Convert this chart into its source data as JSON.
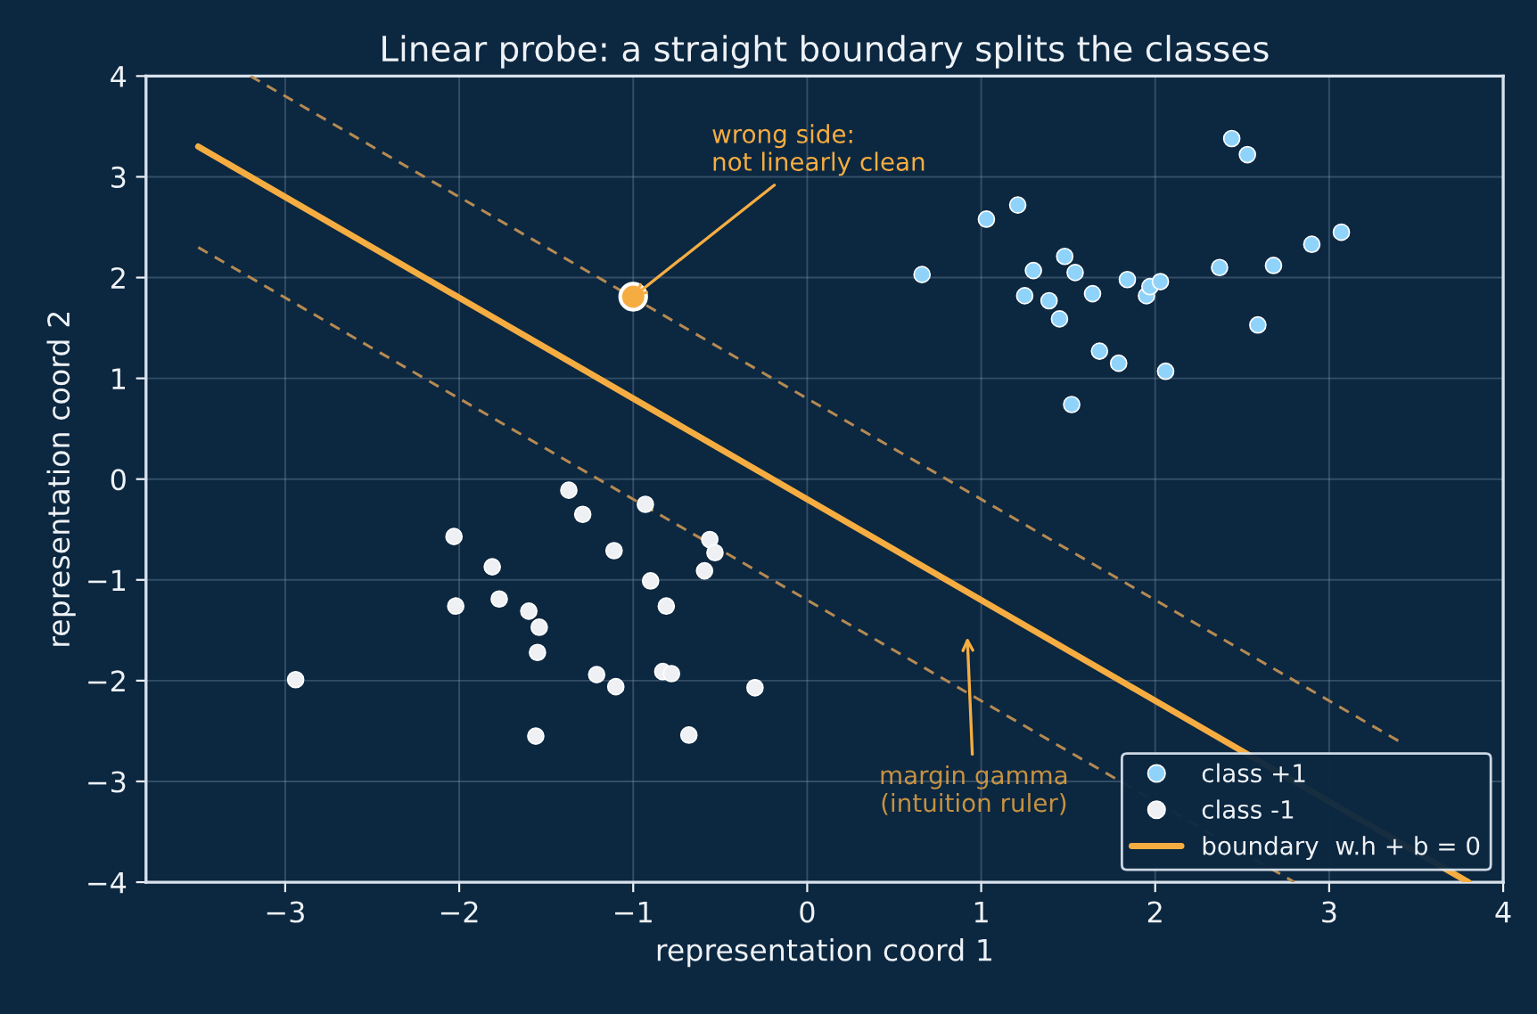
{
  "chart_data": {
    "type": "scatter",
    "title": "Linear probe: a straight boundary splits the classes",
    "xlabel": "representation coord 1",
    "ylabel": "representation coord 2",
    "xlim": [
      -3.8,
      4
    ],
    "ylim": [
      -4,
      4
    ],
    "xticks": [
      {
        "value": -3,
        "label": "−3"
      },
      {
        "value": -2,
        "label": "−2"
      },
      {
        "value": -1,
        "label": "−1"
      },
      0,
      1,
      2,
      3,
      4
    ],
    "yticks": [
      {
        "value": -4,
        "label": "−4"
      },
      {
        "value": -3,
        "label": "−3"
      },
      {
        "value": -2,
        "label": "−2"
      },
      {
        "value": -1,
        "label": "−1"
      },
      0,
      1,
      2,
      3,
      4
    ],
    "grid": true,
    "legend": "lower right",
    "series": [
      {
        "name": "class +1",
        "marker": "circle",
        "color": "#8fd3fb",
        "x": [
          0.66,
          1.03,
          1.21,
          1.48,
          1.3,
          1.54,
          1.25,
          1.39,
          1.45,
          1.64,
          1.84,
          1.95,
          1.97,
          2.03,
          1.68,
          1.79,
          2.06,
          1.52,
          2.37,
          2.44,
          2.53,
          2.68,
          2.9,
          3.07,
          2.59
        ],
        "values": [
          2.03,
          2.58,
          2.72,
          2.21,
          2.07,
          2.05,
          1.82,
          1.77,
          1.59,
          1.84,
          1.98,
          1.82,
          1.91,
          1.96,
          1.27,
          1.15,
          1.07,
          0.74,
          2.1,
          3.38,
          3.22,
          2.12,
          2.33,
          2.45,
          1.53
        ]
      },
      {
        "name": "class -1",
        "marker": "circle",
        "color": "#eef0f3",
        "x": [
          -2.94,
          -2.03,
          -2.02,
          -1.81,
          -1.77,
          -1.6,
          -1.54,
          -1.55,
          -1.56,
          -1.37,
          -1.31,
          -1.29,
          -1.11,
          -0.93,
          -0.9,
          -0.81,
          -1.21,
          -1.1,
          -0.83,
          -0.78,
          -0.68,
          -0.56,
          -0.53,
          -0.59,
          -0.3
        ],
        "values": [
          -1.99,
          -0.57,
          -1.26,
          -0.87,
          -1.19,
          -1.31,
          -1.47,
          -1.72,
          -2.55,
          -0.11,
          null,
          -0.35,
          -0.71,
          -0.25,
          -1.01,
          -1.26,
          -1.94,
          -2.06,
          -1.91,
          -1.93,
          -2.54,
          -0.6,
          -0.73,
          -0.91,
          -2.07
        ]
      },
      {
        "marker": "circle",
        "color": "#f5ad42",
        "x": [
          -1.0
        ],
        "values": [
          1.81
        ]
      },
      {
        "name": "boundary  w.h + b = 0",
        "type": "line",
        "marker": "none",
        "color": "#f5ad42",
        "line_style": "solid",
        "x": [
          -3.5,
          3.8
        ],
        "values": [
          3.3,
          -4.0
        ]
      },
      {
        "type": "line",
        "marker": "none",
        "color": "#b58a52",
        "line_style": "dashed",
        "x": [
          -3.2,
          3.4
        ],
        "values": [
          4.0,
          -2.6
        ]
      },
      {
        "type": "line",
        "marker": "none",
        "color": "#b58a52",
        "line_style": "dashed",
        "x": [
          -3.5,
          2.8
        ],
        "values": [
          2.3,
          -4.0
        ]
      }
    ],
    "annotations": [
      {
        "text": "wrong side:\nnot linearly clean",
        "x": -1.0,
        "y": 1.81
      },
      "margin gamma\n(intuition ruler)"
    ]
  }
}
